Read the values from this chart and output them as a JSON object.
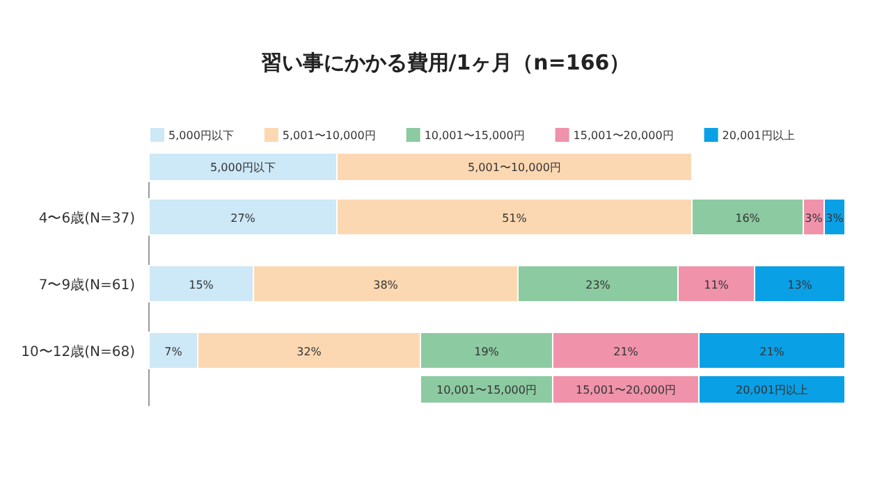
{
  "chart_data": {
    "type": "bar",
    "orientation": "horizontal",
    "stacked": true,
    "title": "習い事にかかる費用/1ヶ月（n=166）",
    "categories": [
      "4〜6歳(N=37)",
      "7〜9歳(N=61)",
      "10〜12歳(N=68)"
    ],
    "series": [
      {
        "name": "5,000円以下",
        "color": "#cde8f6",
        "values": [
          27,
          15,
          7
        ],
        "value_labels": [
          "27%",
          "15%",
          "7%"
        ]
      },
      {
        "name": "5,001〜10,000円",
        "color": "#fcd8b2",
        "values": [
          51,
          38,
          32
        ],
        "value_labels": [
          "51%",
          "38%",
          "32%"
        ]
      },
      {
        "name": "10,001〜15,000円",
        "color": "#8ccaa1",
        "values": [
          16,
          23,
          19
        ],
        "value_labels": [
          "16%",
          "23%",
          "19%"
        ]
      },
      {
        "name": "15,001〜20,000円",
        "color": "#ef92aa",
        "values": [
          3,
          11,
          21
        ],
        "value_labels": [
          "3%",
          "11%",
          "21%"
        ]
      },
      {
        "name": "20,001円以上",
        "color": "#0aa0e6",
        "values": [
          3,
          13,
          21
        ],
        "value_labels": [
          "3%",
          "13%",
          "21%"
        ]
      }
    ],
    "annotations": [
      "5,000円以下",
      "5,001〜10,000円",
      "10,001〜15,000円",
      "15,001〜20,000円",
      "20,001円以上"
    ],
    "legend": "top"
  }
}
